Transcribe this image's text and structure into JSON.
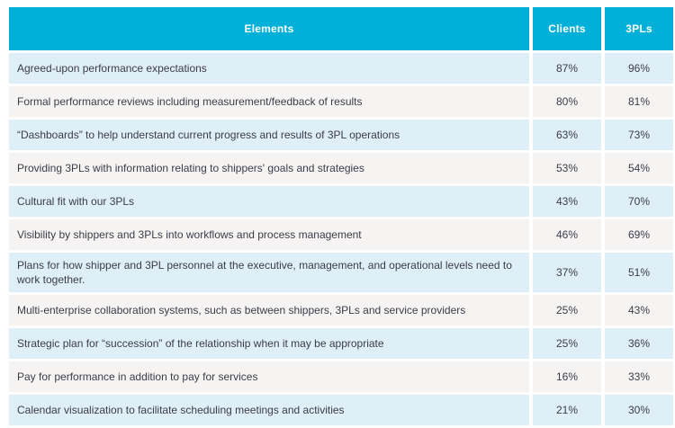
{
  "colors": {
    "header_bg": "#00b0d8",
    "header_text": "#ffffff",
    "row_alt_blue": "#deeff7",
    "row_alt_gray": "#f5f4f2",
    "body_text": "#3c3c49"
  },
  "chart_data": {
    "type": "table",
    "columns": [
      "Elements",
      "Clients",
      "3PLs"
    ],
    "rows": [
      {
        "element": "Agreed-upon performance expectations",
        "clients": "87%",
        "pls": "96%"
      },
      {
        "element": "Formal performance reviews including measurement/feedback of results",
        "clients": "80%",
        "pls": "81%"
      },
      {
        "element": "“Dashboards” to help understand current progress and results of 3PL operations",
        "clients": "63%",
        "pls": "73%"
      },
      {
        "element": "Providing 3PLs with information relating to shippers' goals and strategies",
        "clients": "53%",
        "pls": "54%"
      },
      {
        "element": "Cultural fit with our 3PLs",
        "clients": "43%",
        "pls": "70%"
      },
      {
        "element": "Visibility by shippers and 3PLs into workflows and process management",
        "clients": "46%",
        "pls": "69%"
      },
      {
        "element": "Plans for how shipper and 3PL personnel at the executive, management, and operational levels need to work together.",
        "clients": "37%",
        "pls": "51%"
      },
      {
        "element": "Multi-enterprise collaboration systems, such as between shippers, 3PLs and service providers",
        "clients": "25%",
        "pls": "43%"
      },
      {
        "element": "Strategic plan for “succession” of the relationship when it may be appropriate",
        "clients": "25%",
        "pls": "36%"
      },
      {
        "element": "Pay for performance in addition to pay for services",
        "clients": "16%",
        "pls": "33%"
      },
      {
        "element": "Calendar visualization to facilitate scheduling meetings and activities",
        "clients": "21%",
        "pls": "30%"
      }
    ]
  }
}
